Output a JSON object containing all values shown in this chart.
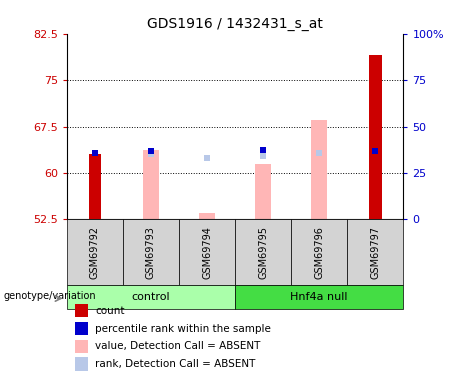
{
  "title": "GDS1916 / 1432431_s_at",
  "samples": [
    "GSM69792",
    "GSM69793",
    "GSM69794",
    "GSM69795",
    "GSM69796",
    "GSM69797"
  ],
  "ylim_left": [
    52.5,
    82.5
  ],
  "ylim_right": [
    0,
    100
  ],
  "yticks_left": [
    52.5,
    60,
    67.5,
    75,
    82.5
  ],
  "yticks_right": [
    0,
    25,
    50,
    75,
    100
  ],
  "ytick_labels_left": [
    "52.5",
    "60",
    "67.5",
    "75",
    "82.5"
  ],
  "ytick_labels_right": [
    "0",
    "25",
    "50",
    "75",
    "100%"
  ],
  "pink_bars": {
    "2": [
      52.5,
      63.7
    ],
    "3": [
      52.5,
      53.5
    ],
    "4": [
      52.5,
      61.5
    ],
    "5": [
      52.5,
      68.5
    ]
  },
  "rank_absent_squares": {
    "2": 63.0,
    "3": 62.5,
    "4": 62.7,
    "5": 63.2,
    "6": 63.5
  },
  "red_bars": {
    "1": [
      52.5,
      63.0
    ],
    "6": [
      52.5,
      79.0
    ]
  },
  "blue_squares": {
    "1": 63.3,
    "2": 63.5,
    "4": 63.7,
    "6": 63.6
  },
  "color_red": "#cc0000",
  "color_blue": "#0000cc",
  "color_pink": "#ffb6b6",
  "color_light_blue": "#b8c8e8",
  "color_green_control": "#aaffaa",
  "color_green_hnf4a": "#44dd44",
  "color_gray_bg": "#d3d3d3",
  "group_label": "genotype/variation",
  "groups_spec": [
    [
      0.5,
      3.5,
      "control",
      "#aaffaa"
    ],
    [
      3.5,
      6.5,
      "Hnf4a null",
      "#44dd44"
    ]
  ],
  "legend_items": [
    [
      "count",
      "#cc0000"
    ],
    [
      "percentile rank within the sample",
      "#0000cc"
    ],
    [
      "value, Detection Call = ABSENT",
      "#ffb6b6"
    ],
    [
      "rank, Detection Call = ABSENT",
      "#b8c8e8"
    ]
  ]
}
